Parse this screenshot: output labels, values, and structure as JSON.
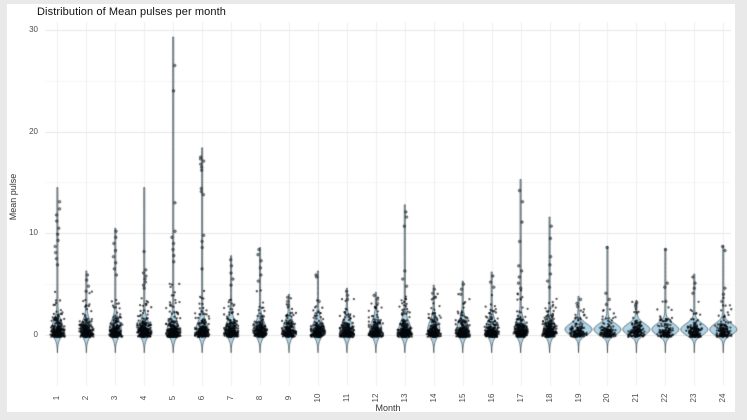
{
  "window": {
    "background": "#e9e9e9",
    "figure_background": "#ffffff"
  },
  "chart_data": {
    "type": "scatter",
    "subtype": "violin-plot-with-jittered-points",
    "title": "Distribution of Mean pulses per month",
    "xlabel": "Month",
    "ylabel": "Mean pulse",
    "ylim": [
      -2.5,
      30.5
    ],
    "yticks": [
      0,
      10,
      20,
      30
    ],
    "minor_gridlines": [
      5,
      15,
      25
    ],
    "grid": "light gray major+minor horizontal lines and vertical line per month on white panel",
    "legend": "none",
    "point_color": "#000000",
    "violin_fill": "#aed4e6",
    "violin_stroke": "#1a1a1a",
    "months": [
      {
        "label": "1",
        "max": 14.5,
        "bulk": 3.0,
        "n": 265,
        "wide": false,
        "outliers": [
          13.1,
          12.4,
          11.8,
          11.2,
          10.5,
          9.9,
          9.3,
          8.7,
          8.1,
          7.5,
          6.9
        ]
      },
      {
        "label": "2",
        "max": 6.3,
        "bulk": 3.0,
        "n": 250,
        "wide": false,
        "outliers": [
          5.9,
          5.4,
          4.8,
          4.3
        ]
      },
      {
        "label": "3",
        "max": 10.5,
        "bulk": 3.2,
        "n": 255,
        "wide": false,
        "outliers": [
          10.2,
          9.6,
          9.0,
          8.3,
          7.7,
          7.1,
          6.5,
          5.9
        ]
      },
      {
        "label": "4",
        "max": 14.5,
        "bulk": 3.2,
        "n": 270,
        "wide": false,
        "outliers": [
          8.2,
          6.4,
          6.1,
          5.8,
          5.5,
          5.2,
          4.9,
          4.6
        ]
      },
      {
        "label": "5",
        "max": 29.3,
        "bulk": 3.5,
        "n": 290,
        "wide": false,
        "outliers": [
          26.5,
          24.0,
          13.0,
          10.2,
          9.6,
          9.0,
          8.4,
          7.8,
          7.2
        ]
      },
      {
        "label": "6",
        "max": 18.4,
        "bulk": 3.0,
        "n": 280,
        "wide": false,
        "outliers": [
          17.5,
          17.3,
          17.1,
          16.8,
          16.5,
          16.2,
          14.4,
          14.1,
          13.8,
          9.8,
          9.2,
          8.6,
          6.5
        ]
      },
      {
        "label": "7",
        "max": 7.8,
        "bulk": 2.8,
        "n": 245,
        "wide": false,
        "outliers": [
          7.4,
          6.8,
          6.1,
          5.5,
          4.9
        ]
      },
      {
        "label": "8",
        "max": 8.6,
        "bulk": 3.0,
        "n": 250,
        "wide": false,
        "outliers": [
          8.4,
          7.9,
          7.3,
          6.6,
          5.9,
          5.3
        ]
      },
      {
        "label": "9",
        "max": 4.0,
        "bulk": 2.5,
        "n": 235,
        "wide": false,
        "outliers": [
          3.7,
          3.3,
          2.9
        ]
      },
      {
        "label": "10",
        "max": 6.3,
        "bulk": 2.5,
        "n": 230,
        "wide": false,
        "outliers": [
          5.9,
          5.7,
          3.3
        ]
      },
      {
        "label": "11",
        "max": 4.6,
        "bulk": 2.5,
        "n": 235,
        "wide": false,
        "outliers": [
          4.3,
          3.9,
          3.5
        ]
      },
      {
        "label": "12",
        "max": 4.2,
        "bulk": 2.6,
        "n": 235,
        "wide": false,
        "outliers": [
          3.9,
          3.5,
          3.1
        ]
      },
      {
        "label": "13",
        "max": 12.8,
        "bulk": 3.0,
        "n": 255,
        "wide": false,
        "outliers": [
          12.1,
          11.6,
          10.7,
          6.3,
          5.5,
          4.8
        ]
      },
      {
        "label": "14",
        "max": 4.9,
        "bulk": 2.8,
        "n": 240,
        "wide": false,
        "outliers": [
          4.5,
          4.1,
          3.7
        ]
      },
      {
        "label": "15",
        "max": 5.3,
        "bulk": 2.8,
        "n": 245,
        "wide": false,
        "outliers": [
          5.0,
          4.5,
          4.0
        ]
      },
      {
        "label": "16",
        "max": 6.2,
        "bulk": 2.8,
        "n": 245,
        "wide": false,
        "outliers": [
          5.8,
          5.2,
          4.7
        ]
      },
      {
        "label": "17",
        "max": 15.3,
        "bulk": 3.0,
        "n": 260,
        "wide": false,
        "outliers": [
          14.2,
          13.1,
          11.1,
          9.2,
          6.8,
          6.3,
          5.7,
          5.1,
          4.6
        ]
      },
      {
        "label": "18",
        "max": 11.6,
        "bulk": 3.0,
        "n": 255,
        "wide": false,
        "outliers": [
          10.7,
          9.5,
          7.7,
          6.9,
          6.0,
          5.3,
          4.7
        ]
      },
      {
        "label": "19",
        "max": 3.8,
        "bulk": 2.0,
        "n": 150,
        "wide": true,
        "outliers": [
          3.5,
          3.1,
          2.8
        ]
      },
      {
        "label": "20",
        "max": 8.7,
        "bulk": 2.0,
        "n": 150,
        "wide": true,
        "outliers": [
          8.6,
          4.1,
          3.5,
          3.0
        ]
      },
      {
        "label": "21",
        "max": 3.4,
        "bulk": 2.2,
        "n": 155,
        "wide": true,
        "outliers": [
          3.2,
          3.0,
          2.8
        ]
      },
      {
        "label": "22",
        "max": 8.5,
        "bulk": 2.2,
        "n": 150,
        "wide": true,
        "outliers": [
          8.4,
          5.1,
          4.7,
          3.3
        ]
      },
      {
        "label": "23",
        "max": 6.0,
        "bulk": 2.2,
        "n": 150,
        "wide": true,
        "outliers": [
          5.7,
          5.1,
          4.6,
          4.1
        ]
      },
      {
        "label": "24",
        "max": 8.8,
        "bulk": 2.5,
        "n": 160,
        "wide": true,
        "outliers": [
          8.7,
          8.3,
          4.6,
          4.0,
          3.3
        ]
      }
    ]
  }
}
